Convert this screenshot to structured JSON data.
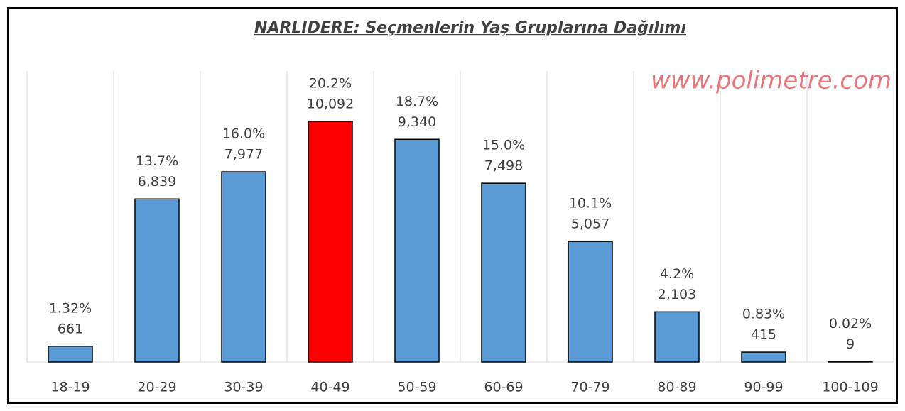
{
  "chart_data": {
    "type": "bar",
    "title": "NARLIDERE: Seçmenlerin Yaş Gruplarına Dağılımı",
    "watermark": "www.polimetre.com",
    "categories": [
      "18-19",
      "20-29",
      "30-39",
      "40-49",
      "50-59",
      "60-69",
      "70-79",
      "80-89",
      "90-99",
      "100-109"
    ],
    "values": [
      661,
      6839,
      7977,
      10092,
      9340,
      7498,
      5057,
      2103,
      415,
      9
    ],
    "value_labels": [
      "661",
      "6,839",
      "7,977",
      "10,092",
      "9,340",
      "7,498",
      "5,057",
      "2,103",
      "415",
      "9"
    ],
    "percentages": [
      1.32,
      13.7,
      16.0,
      20.2,
      18.7,
      15.0,
      10.1,
      4.2,
      0.83,
      0.02
    ],
    "percentage_labels": [
      "1.32%",
      "13.7%",
      "16.0%",
      "20.2%",
      "18.7%",
      "15.0%",
      "10.1%",
      "4.2%",
      "0.83%",
      "0.02%"
    ],
    "colors": [
      "#5b9bd5",
      "#5b9bd5",
      "#5b9bd5",
      "#ff0000",
      "#5b9bd5",
      "#5b9bd5",
      "#5b9bd5",
      "#5b9bd5",
      "#5b9bd5",
      "#5b9bd5"
    ],
    "grid": true
  }
}
